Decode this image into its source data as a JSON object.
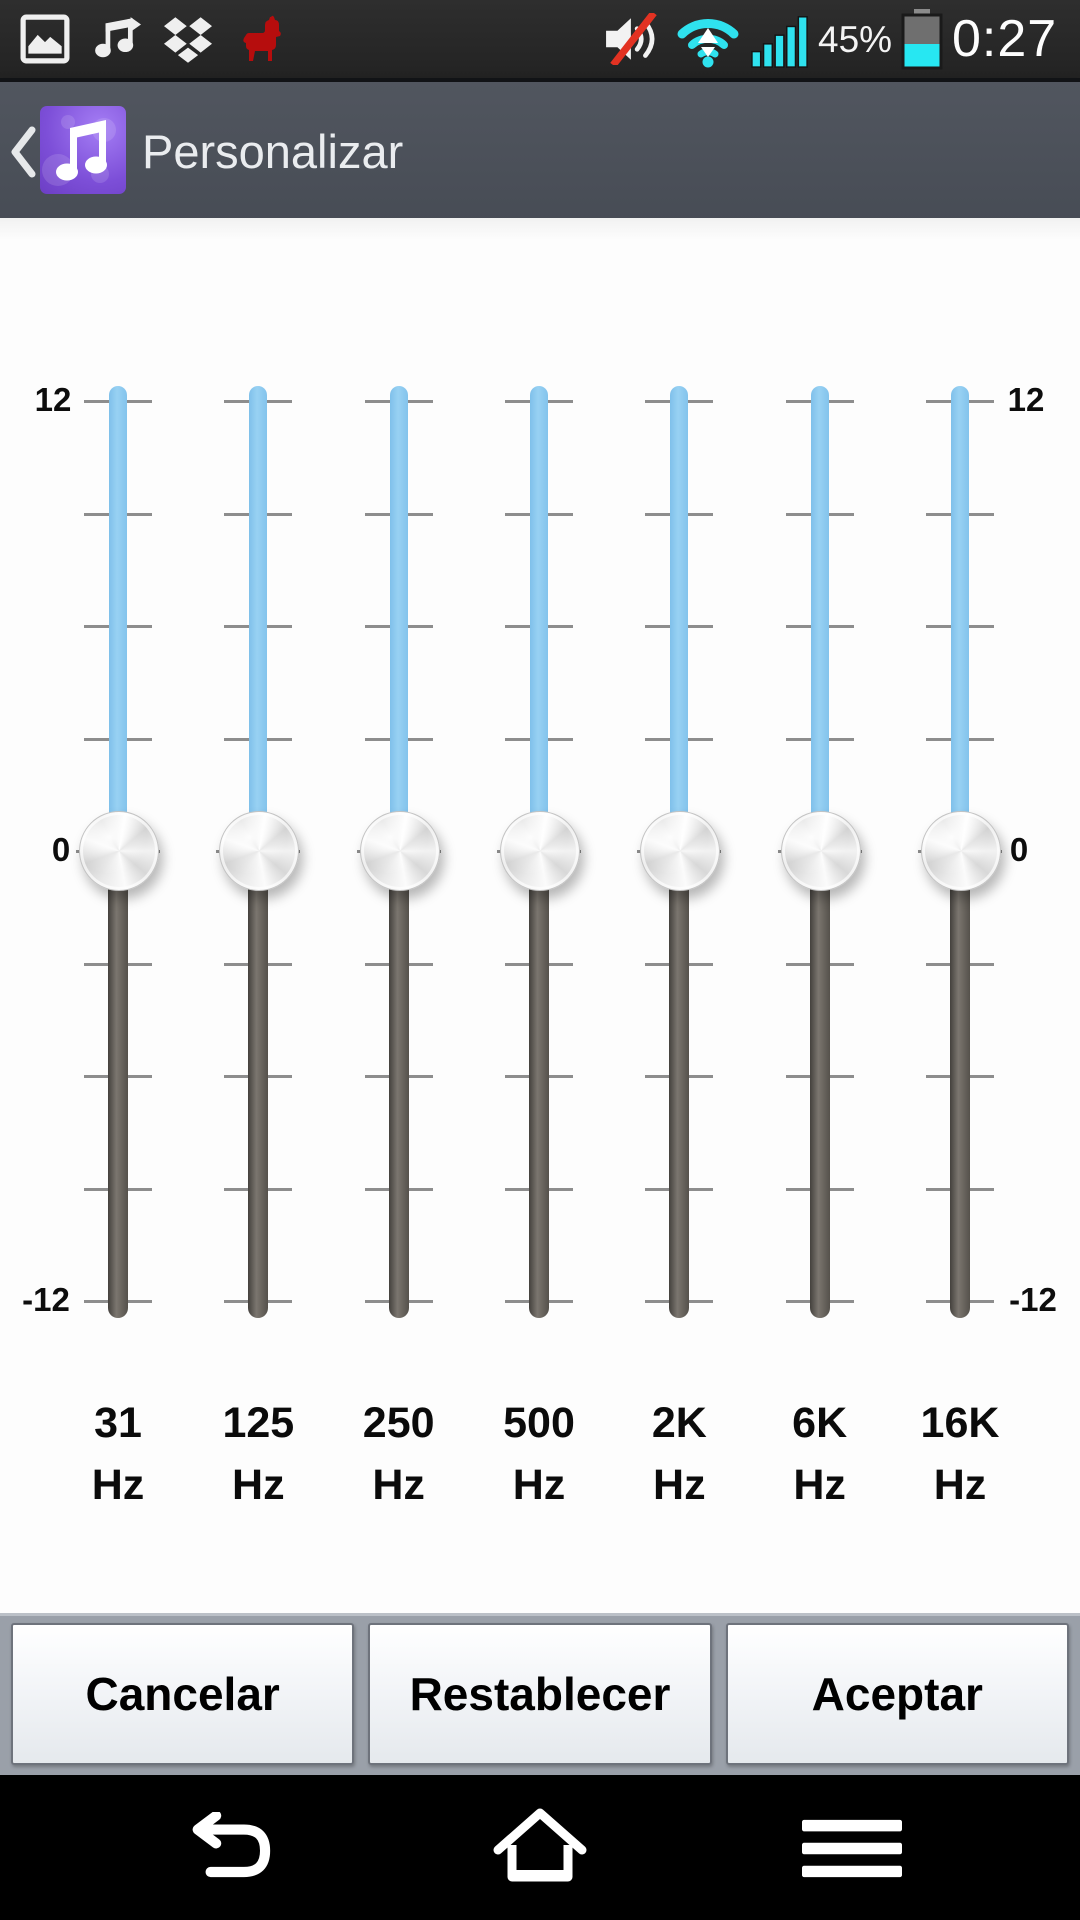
{
  "status_bar": {
    "time": "0:27",
    "battery_percent": "45%",
    "battery_level": 45,
    "icons_left": [
      "gallery-icon",
      "music-playlist-icon",
      "dropbox-icon",
      "llama-icon"
    ],
    "icons_right": [
      "mute-speaker-icon",
      "wifi-icon",
      "signal-strength-icon",
      "battery-icon"
    ]
  },
  "header": {
    "title": "Personalizar",
    "back_icon": "back-chevron-icon",
    "app_icon": "music-note-icon"
  },
  "equalizer": {
    "scale": {
      "max": 12,
      "min": -12,
      "max_label": "12",
      "zero_label": "0",
      "min_label": "-12"
    },
    "bands": [
      {
        "freq": "31",
        "unit": "Hz",
        "value": 0
      },
      {
        "freq": "125",
        "unit": "Hz",
        "value": 0
      },
      {
        "freq": "250",
        "unit": "Hz",
        "value": 0
      },
      {
        "freq": "500",
        "unit": "Hz",
        "value": 0
      },
      {
        "freq": "2K",
        "unit": "Hz",
        "value": 0
      },
      {
        "freq": "6K",
        "unit": "Hz",
        "value": 0
      },
      {
        "freq": "16K",
        "unit": "Hz",
        "value": 0
      }
    ]
  },
  "buttons": {
    "cancel": "Cancelar",
    "reset": "Restablecer",
    "accept": "Aceptar"
  },
  "nav_bar": {
    "icons": [
      "back-icon",
      "home-icon",
      "menu-icon"
    ]
  },
  "colors": {
    "accent_cyan": "#2fe2ef",
    "track_active_blue": "#8dc9ef",
    "track_inactive_gray": "#5e5a55",
    "header_bg": "#494e57",
    "app_icon_purple": "#7d4fd8",
    "mute_slash_red": "#e23222",
    "button_bar_gray": "#9aa0a9"
  }
}
